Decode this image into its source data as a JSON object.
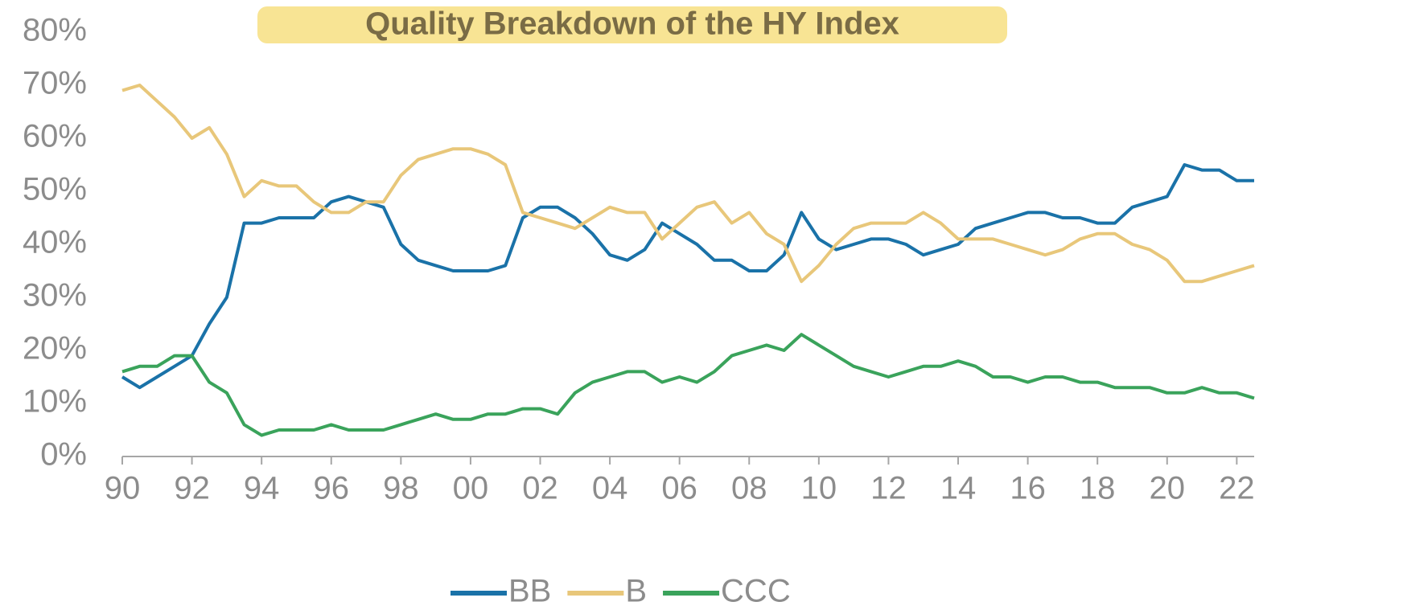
{
  "chart_data": {
    "type": "line",
    "title": "Quality Breakdown of the HY Index",
    "x": [
      1990,
      1990.5,
      1991,
      1991.5,
      1992,
      1992.5,
      1993,
      1993.5,
      1994,
      1994.5,
      1995,
      1995.5,
      1996,
      1996.5,
      1997,
      1997.5,
      1998,
      1998.5,
      1999,
      1999.5,
      2000,
      2000.5,
      2001,
      2001.5,
      2002,
      2002.5,
      2003,
      2003.5,
      2004,
      2004.5,
      2005,
      2005.5,
      2006,
      2006.5,
      2007,
      2007.5,
      2008,
      2008.5,
      2009,
      2009.5,
      2010,
      2010.5,
      2011,
      2011.5,
      2012,
      2012.5,
      2013,
      2013.5,
      2014,
      2014.5,
      2015,
      2015.5,
      2016,
      2016.5,
      2017,
      2017.5,
      2018,
      2018.5,
      2019,
      2019.5,
      2020,
      2020.5,
      2021,
      2021.5,
      2022,
      2022.5
    ],
    "series": [
      {
        "name": "BB",
        "color": "#1a72a8",
        "values": [
          15,
          13,
          15,
          17,
          19,
          25,
          30,
          44,
          44,
          45,
          45,
          45,
          48,
          49,
          48,
          47,
          40,
          37,
          36,
          35,
          35,
          35,
          36,
          45,
          47,
          47,
          45,
          42,
          38,
          37,
          39,
          44,
          42,
          40,
          37,
          37,
          35,
          35,
          38,
          46,
          41,
          39,
          40,
          41,
          41,
          40,
          38,
          39,
          40,
          43,
          44,
          45,
          46,
          46,
          45,
          45,
          44,
          44,
          47,
          48,
          49,
          55,
          54,
          54,
          52,
          52
        ]
      },
      {
        "name": "B",
        "color": "#e8c77a",
        "values": [
          69,
          70,
          67,
          64,
          60,
          62,
          57,
          49,
          52,
          51,
          51,
          48,
          46,
          46,
          48,
          48,
          53,
          56,
          57,
          58,
          58,
          57,
          55,
          46,
          45,
          44,
          43,
          45,
          47,
          46,
          46,
          41,
          44,
          47,
          48,
          44,
          46,
          42,
          40,
          33,
          36,
          40,
          43,
          44,
          44,
          44,
          46,
          44,
          41,
          41,
          41,
          40,
          39,
          38,
          39,
          41,
          42,
          42,
          40,
          39,
          37,
          33,
          33,
          34,
          35,
          36
        ]
      },
      {
        "name": "CCC",
        "color": "#3aa35b",
        "values": [
          16,
          17,
          17,
          19,
          19,
          14,
          12,
          6,
          4,
          5,
          5,
          5,
          6,
          5,
          5,
          5,
          6,
          7,
          8,
          7,
          7,
          8,
          8,
          9,
          9,
          8,
          12,
          14,
          15,
          16,
          16,
          14,
          15,
          14,
          16,
          19,
          20,
          21,
          20,
          23,
          21,
          19,
          17,
          16,
          15,
          16,
          17,
          17,
          18,
          17,
          15,
          15,
          14,
          15,
          15,
          14,
          14,
          13,
          13,
          13,
          12,
          12,
          13,
          12,
          12,
          11
        ]
      }
    ],
    "xlim": [
      1990,
      2022.5
    ],
    "xticks": [
      {
        "value": 1990,
        "label": "90"
      },
      {
        "value": 1992,
        "label": "92"
      },
      {
        "value": 1994,
        "label": "94"
      },
      {
        "value": 1996,
        "label": "96"
      },
      {
        "value": 1998,
        "label": "98"
      },
      {
        "value": 2000,
        "label": "00"
      },
      {
        "value": 2002,
        "label": "02"
      },
      {
        "value": 2004,
        "label": "04"
      },
      {
        "value": 2006,
        "label": "06"
      },
      {
        "value": 2008,
        "label": "08"
      },
      {
        "value": 2010,
        "label": "10"
      },
      {
        "value": 2012,
        "label": "12"
      },
      {
        "value": 2014,
        "label": "14"
      },
      {
        "value": 2016,
        "label": "16"
      },
      {
        "value": 2018,
        "label": "18"
      },
      {
        "value": 2020,
        "label": "20"
      },
      {
        "value": 2022,
        "label": "22"
      }
    ],
    "ylim": [
      0,
      80
    ],
    "yticks": [
      {
        "value": 0,
        "label": "0%"
      },
      {
        "value": 10,
        "label": "10%"
      },
      {
        "value": 20,
        "label": "20%"
      },
      {
        "value": 30,
        "label": "30%"
      },
      {
        "value": 40,
        "label": "40%"
      },
      {
        "value": 50,
        "label": "50%"
      },
      {
        "value": 60,
        "label": "60%"
      },
      {
        "value": 70,
        "label": "70%"
      },
      {
        "value": 80,
        "label": "80%"
      }
    ],
    "legend": "bottom"
  }
}
